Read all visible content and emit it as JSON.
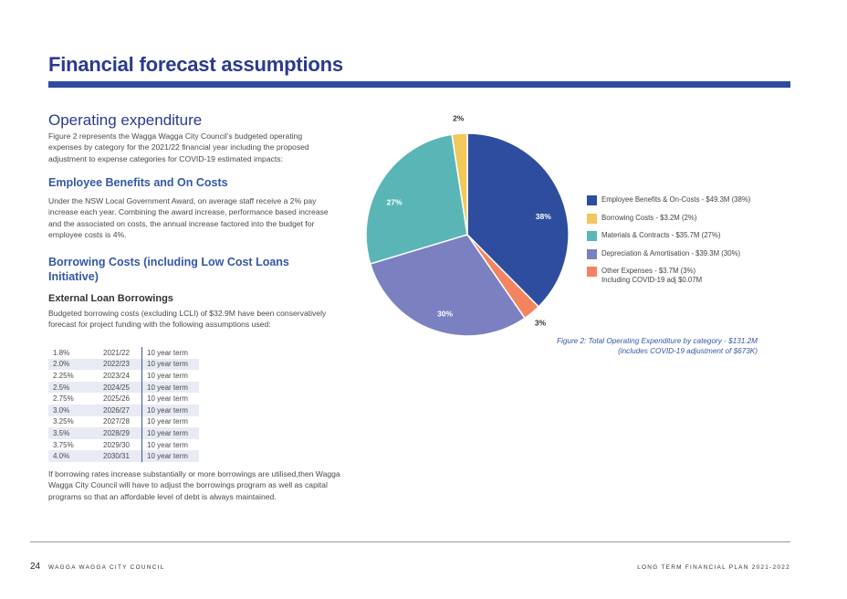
{
  "title": "Financial forecast assumptions",
  "operating": {
    "heading": "Operating expenditure",
    "intro": "Figure 2 represents the Wagga Wagga City Council’s budgeted operating expenses by category for the 2021/22 financial year including the proposed adjustment to expense categories for COVID-19 estimated impacts:"
  },
  "employee": {
    "heading": "Employee Benefits and On Costs",
    "text": "Under the NSW Local Government Award, on average staff receive a 2% pay increase each year. Combining the award increase, performance based increase and the associated on costs, the annual increase factored into the budget for employee costs is 4%."
  },
  "borrowing": {
    "heading": "Borrowing Costs (including Low Cost Loans Initiative)",
    "subheading": "External Loan Borrowings",
    "text": "Budgeted borrowing costs (excluding LCLI) of $32.9M have been conservatively forecast for project funding with the following assumptions used:",
    "rates": [
      {
        "rate": "1.8%",
        "year": "2021/22",
        "term": "10 year term"
      },
      {
        "rate": "2.0%",
        "year": "2022/23",
        "term": "10 year term"
      },
      {
        "rate": "2.25%",
        "year": "2023/24",
        "term": "10 year term"
      },
      {
        "rate": "2.5%",
        "year": "2024/25",
        "term": "10 year term"
      },
      {
        "rate": "2.75%",
        "year": "2025/26",
        "term": "10 year term"
      },
      {
        "rate": "3.0%",
        "year": "2026/27",
        "term": "10 year term"
      },
      {
        "rate": "3.25%",
        "year": "2027/28",
        "term": "10 year term"
      },
      {
        "rate": "3.5%",
        "year": "2028/29",
        "term": "10 year term"
      },
      {
        "rate": "3.75%",
        "year": "2029/30",
        "term": "10 year term"
      },
      {
        "rate": "4.0%",
        "year": "2030/31",
        "term": "10 year term"
      }
    ],
    "closing": "If borrowing rates increase substantially or more borrowings are utilised,then Wagga Wagga City Council will have to adjust the borrowings program as well as capital programs so that an affordable level of debt is always maintained."
  },
  "chart_data": {
    "type": "pie",
    "unit": "$M",
    "slices": [
      {
        "label": "Employee Benefits & On-Costs - $49.3M (38%)",
        "value": 49.3,
        "percent_label": "38%",
        "color": "#2f4d9e"
      },
      {
        "label": "Other Expenses - $3.7M (3%) Including COVID-19 adj $0.07M",
        "value": 3.7,
        "percent_label": "3%",
        "color": "#f4845f"
      },
      {
        "label": "Depreciation & Amortisation - $39.3M (30%)",
        "value": 39.3,
        "percent_label": "30%",
        "color": "#7b80c0"
      },
      {
        "label": "Materials & Contracts - $35.7M (27%)",
        "value": 35.7,
        "percent_label": "27%",
        "color": "#5ab6b6"
      },
      {
        "label": "Borrowing Costs - $3.2M (2%)",
        "value": 3.2,
        "percent_label": "2%",
        "color": "#f2c75c"
      }
    ],
    "legend": [
      {
        "text": "Employee Benefits & On-Costs - $49.3M (38%)",
        "color": "#2f4d9e"
      },
      {
        "text": "Borrowing Costs - $3.2M (2%)",
        "color": "#f2c75c"
      },
      {
        "text": "Materials & Contracts - $35.7M (27%)",
        "color": "#5ab6b6"
      },
      {
        "text": "Depreciation & Amortisation - $39.3M (30%)",
        "color": "#7b80c0"
      },
      {
        "text": "Other Expenses - $3.7M (3%)",
        "text2": "Including COVID-19 adj $0.07M",
        "color": "#f4845f"
      }
    ],
    "legend_position": "right",
    "caption_line1": "Figure 2: Total Operating Expenditure by category - $131.2M",
    "caption_line2": "(includes COVID-19 adjustment of $673K)"
  },
  "footer": {
    "page_number": "24",
    "left": "WAGGA WAGGA CITY COUNCIL",
    "right": "LONG TERM FINANCIAL PLAN 2021-2022"
  }
}
